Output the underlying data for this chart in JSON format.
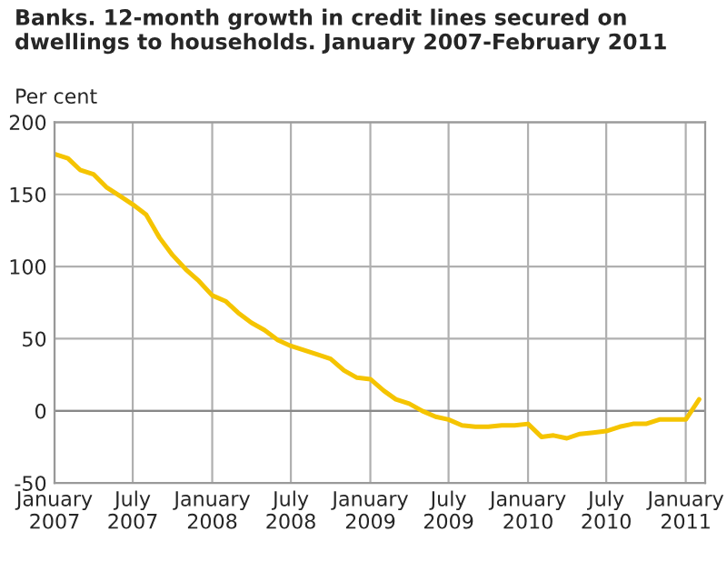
{
  "chart_data": {
    "type": "line",
    "title": "Banks. 12-month growth in credit lines secured on dwellings to households. January 2007-February 2011",
    "ylabel": "Per cent",
    "x": [
      "2007-01",
      "2007-02",
      "2007-03",
      "2007-04",
      "2007-05",
      "2007-06",
      "2007-07",
      "2007-08",
      "2007-09",
      "2007-10",
      "2007-11",
      "2007-12",
      "2008-01",
      "2008-02",
      "2008-03",
      "2008-04",
      "2008-05",
      "2008-06",
      "2008-07",
      "2008-08",
      "2008-09",
      "2008-10",
      "2008-11",
      "2008-12",
      "2009-01",
      "2009-02",
      "2009-03",
      "2009-04",
      "2009-05",
      "2009-06",
      "2009-07",
      "2009-08",
      "2009-09",
      "2009-10",
      "2009-11",
      "2009-12",
      "2010-01",
      "2010-02",
      "2010-03",
      "2010-04",
      "2010-05",
      "2010-06",
      "2010-07",
      "2010-08",
      "2010-09",
      "2010-10",
      "2010-11",
      "2010-12",
      "2011-01",
      "2011-02"
    ],
    "series": [
      {
        "color": "#f5c400",
        "values": [
          178,
          175,
          167,
          164,
          155,
          149,
          143,
          136,
          120,
          108,
          98,
          90,
          80,
          76,
          68,
          61,
          56,
          49,
          45,
          42,
          39,
          36,
          28,
          23,
          22,
          14,
          8,
          5,
          0,
          -4,
          -6,
          -10,
          -11,
          -11,
          -10,
          -10,
          -9,
          -18,
          -17,
          -19,
          -16,
          -15,
          -14,
          -11,
          -9,
          -9,
          -6,
          -6,
          -6,
          8
        ]
      }
    ],
    "xlim": [
      "2007-01",
      "2011-02-15"
    ],
    "xticks": [
      {
        "value": "2007-01",
        "label": "January\n2007"
      },
      {
        "value": "2007-07",
        "label": "July\n2007"
      },
      {
        "value": "2008-01",
        "label": "January\n2008"
      },
      {
        "value": "2008-07",
        "label": "July\n2008"
      },
      {
        "value": "2009-01",
        "label": "January\n2009"
      },
      {
        "value": "2009-07",
        "label": "July\n2009"
      },
      {
        "value": "2010-01",
        "label": "January\n2010"
      },
      {
        "value": "2010-07",
        "label": "July\n2010"
      },
      {
        "value": "2011-01",
        "label": "January\n2011"
      }
    ],
    "ylim": [
      -50,
      200
    ],
    "yticks": [
      -50,
      0,
      50,
      100,
      150,
      200
    ],
    "grid": true,
    "marker": "none",
    "line_style": "solid"
  }
}
